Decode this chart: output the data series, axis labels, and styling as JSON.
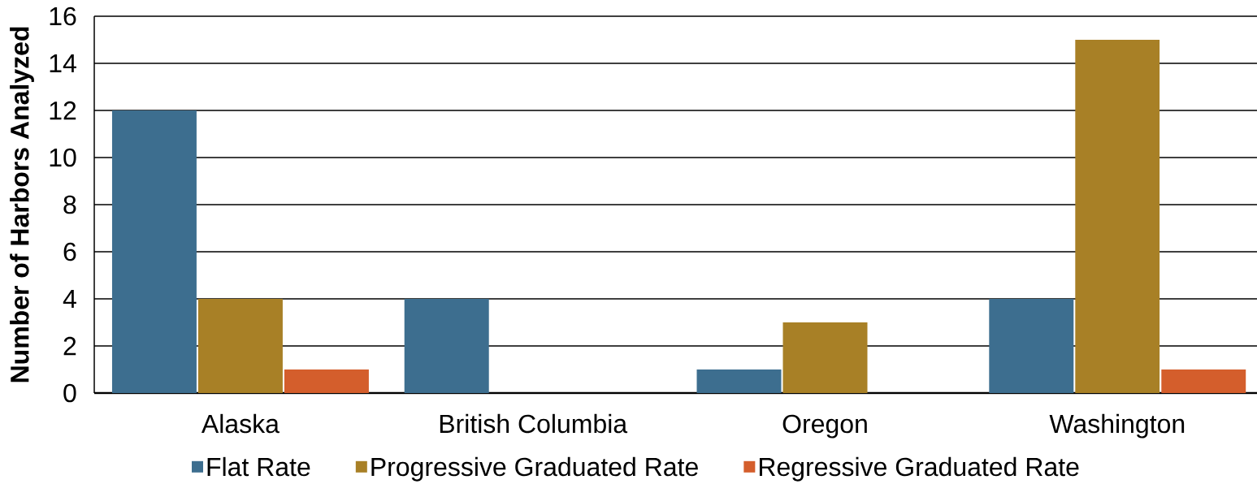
{
  "chart_data": {
    "type": "bar",
    "categories": [
      "Alaska",
      "British Columbia",
      "Oregon",
      "Washington"
    ],
    "series": [
      {
        "name": "Flat Rate",
        "color": "#3d6e8f",
        "values": [
          12,
          4,
          1,
          4
        ]
      },
      {
        "name": "Progressive Graduated Rate",
        "color": "#a88026",
        "values": [
          4,
          0,
          3,
          15
        ]
      },
      {
        "name": "Regressive Graduated Rate",
        "color": "#d45e2c",
        "values": [
          1,
          0,
          0,
          1
        ]
      }
    ],
    "ylabel": "Number of Harbors Analyzed",
    "ylim": [
      0,
      16
    ],
    "yticks": [
      0,
      2,
      4,
      6,
      8,
      10,
      12,
      14,
      16
    ],
    "grid": "y",
    "legend": "bottom"
  }
}
